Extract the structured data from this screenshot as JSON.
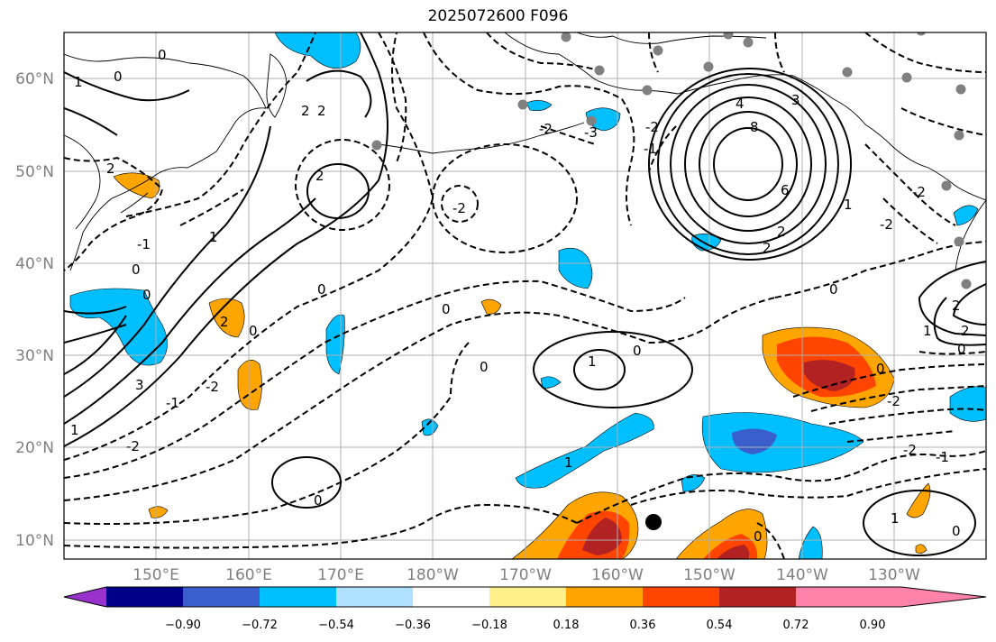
{
  "title": "2025072600 F096",
  "lat_labels": [
    "60°N",
    "50°N",
    "40°N",
    "30°N",
    "20°N",
    "10°N"
  ],
  "lon_labels": [
    "150°E",
    "160°E",
    "170°E",
    "180°W",
    "170°W",
    "160°W",
    "150°W",
    "140°W",
    "130°W"
  ],
  "colorbar": {
    "colors": [
      "#9932cc",
      "#00008b",
      "#3a5fcd",
      "#00bfff",
      "#b0e2ff",
      "#ffffff",
      "#fff08c",
      "#ffa500",
      "#ff4500",
      "#b22222",
      "#ff82ab"
    ],
    "labels": [
      "−0.90",
      "−0.72",
      "−0.54",
      "−0.36",
      "−0.18",
      "0.18",
      "0.36",
      "0.54",
      "0.72",
      "0.90"
    ]
  },
  "contour_labels": [
    "0",
    "1",
    "2",
    "3",
    "4",
    "6",
    "8",
    "-1",
    "-2",
    "-3"
  ],
  "station_color": "#808080",
  "storm_marker_color": "#000000"
}
